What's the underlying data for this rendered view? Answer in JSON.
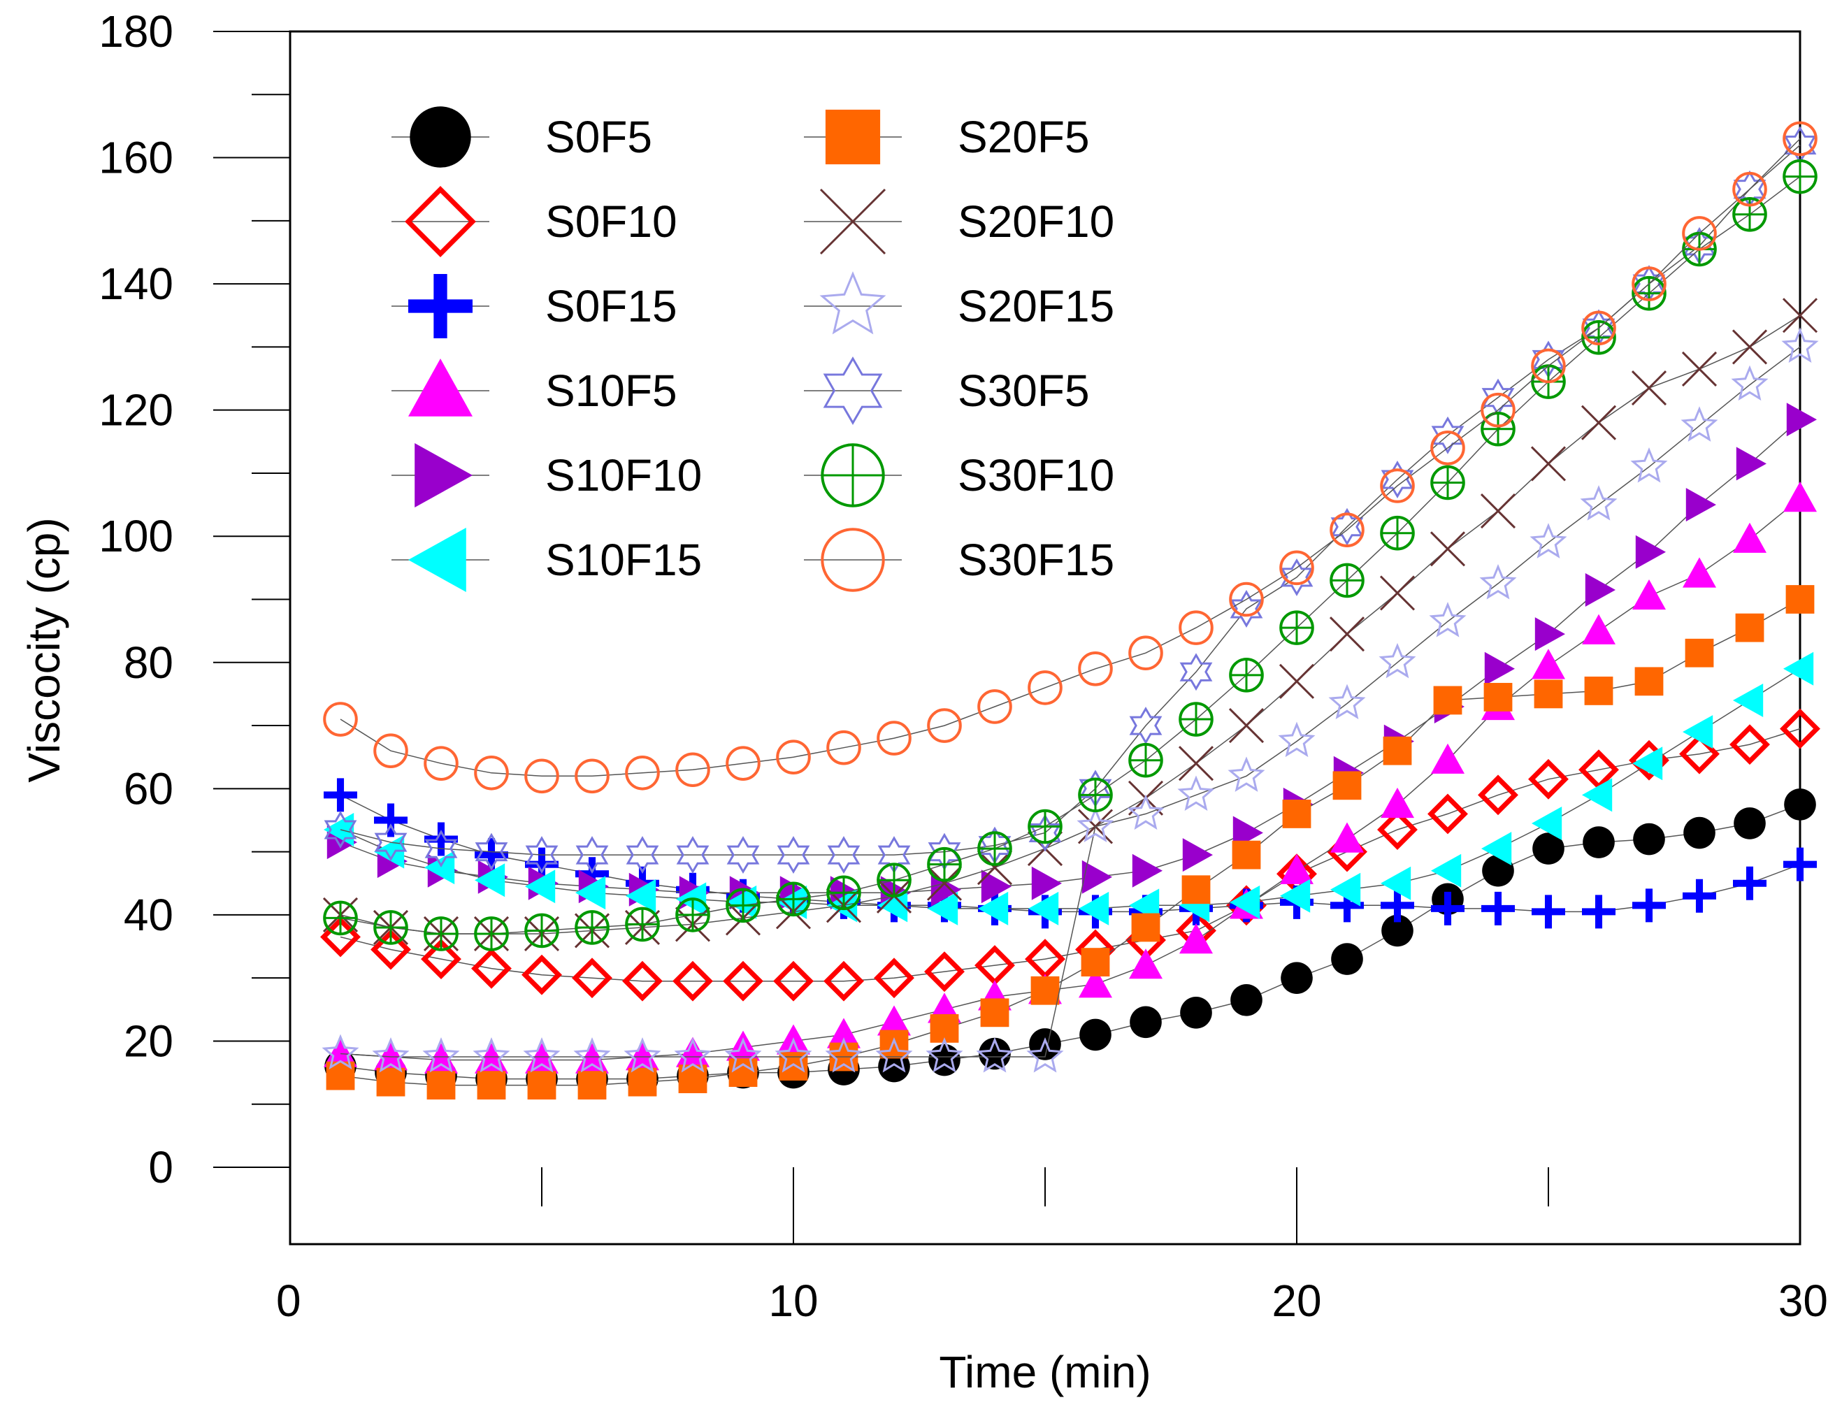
{
  "chart_data": {
    "type": "line",
    "xlabel": "Time (min)",
    "ylabel": "Viscocity (cp)",
    "xlim": [
      0,
      30
    ],
    "ylim": [
      0,
      180
    ],
    "x_ticks": [
      0,
      10,
      20,
      30
    ],
    "y_ticks": [
      0,
      20,
      40,
      60,
      80,
      100,
      120,
      140,
      160,
      180
    ],
    "grid": false,
    "legend_placement": "top-left",
    "x": [
      1,
      2,
      3,
      4,
      5,
      6,
      7,
      8,
      9,
      10,
      11,
      12,
      13,
      14,
      15,
      16,
      17,
      18,
      19,
      20,
      21,
      22,
      23,
      24,
      25,
      26,
      27,
      28,
      29,
      30
    ],
    "series": [
      {
        "name": "S0F5",
        "marker": "filled-circle",
        "color": "#000000",
        "values": [
          16,
          15,
          14.5,
          14,
          14,
          14,
          14,
          14.5,
          15,
          15,
          15.5,
          16,
          17,
          18,
          19.5,
          21,
          23,
          24.5,
          26.5,
          30,
          33,
          37.5,
          42.5,
          47,
          50.5,
          51.5,
          52,
          53,
          54.5,
          57.5
        ]
      },
      {
        "name": "S0F10",
        "marker": "open-diamond",
        "color": "#ff0000",
        "values": [
          36.5,
          34.5,
          33,
          31.5,
          30.5,
          30,
          29.5,
          29.5,
          29.5,
          29.5,
          29.5,
          30,
          31,
          32,
          33,
          34.5,
          36,
          37.5,
          41.5,
          46.5,
          50,
          53.5,
          56,
          59,
          61.5,
          63,
          64.5,
          65.5,
          67,
          69.5
        ]
      },
      {
        "name": "S0F15",
        "marker": "plus",
        "color": "#0000ff",
        "values": [
          59,
          55,
          52,
          49.5,
          48,
          46.5,
          45,
          44,
          43,
          42.5,
          42,
          41.5,
          41.5,
          41,
          40.5,
          40.5,
          40.5,
          41,
          41.5,
          42,
          41.5,
          41.5,
          41,
          41,
          40.5,
          40.5,
          41.5,
          43,
          45,
          48
        ]
      },
      {
        "name": "S10F5",
        "marker": "filled-triangle-up",
        "color": "#ff00ff",
        "values": [
          18,
          17.5,
          17,
          17,
          17,
          17,
          17.5,
          18,
          19,
          20,
          21,
          23,
          25,
          27,
          28,
          29,
          32,
          36,
          41.5,
          47,
          52,
          57.5,
          64.5,
          73,
          79.5,
          85,
          90.5,
          94,
          99.5,
          106
        ]
      },
      {
        "name": "S10F10",
        "marker": "filled-triangle-right",
        "color": "#9900cc",
        "values": [
          51.5,
          48.5,
          47,
          46,
          45,
          44.5,
          44,
          43.5,
          43.5,
          43.5,
          43.5,
          43.5,
          44,
          44.5,
          45,
          46,
          47,
          49.5,
          53,
          57.5,
          62.5,
          67.5,
          73,
          79,
          84.5,
          91.5,
          97.5,
          105,
          111.5,
          118.5
        ]
      },
      {
        "name": "S10F15",
        "marker": "filled-triangle-left",
        "color": "#00ffff",
        "values": [
          53.5,
          50,
          47.5,
          45.5,
          44.5,
          43.5,
          43,
          42.5,
          42,
          42,
          41.5,
          41.5,
          41,
          41,
          41,
          41,
          41.5,
          41.5,
          42,
          43,
          44,
          45,
          47,
          50.5,
          54.5,
          59,
          64,
          69,
          74,
          79
        ]
      },
      {
        "name": "S20F5",
        "marker": "filled-square",
        "color": "#ff6600",
        "values": [
          14.5,
          13.5,
          13,
          13,
          13,
          13,
          13.5,
          14,
          15,
          16,
          17.5,
          19.5,
          22,
          24.5,
          28,
          32.5,
          38,
          44,
          49.5,
          56,
          60.5,
          66,
          74,
          74.5,
          75,
          75.5,
          77,
          81.5,
          85.5,
          90
        ]
      },
      {
        "name": "S20F10",
        "marker": "x-cross",
        "color": "#663333",
        "values": [
          40,
          38,
          37,
          37,
          37,
          37.5,
          38,
          38.5,
          39.5,
          40.5,
          41.5,
          43,
          45,
          47.5,
          50.5,
          54,
          58.5,
          64,
          70,
          77,
          84.5,
          91,
          98,
          104,
          111.5,
          118,
          123.5,
          126.5,
          130,
          135
        ]
      },
      {
        "name": "S20F15",
        "marker": "open-star",
        "color": "#aaaaee",
        "values": [
          18,
          17.5,
          17.5,
          17.5,
          17.5,
          17.5,
          17.5,
          17.5,
          17.5,
          17.5,
          17.5,
          17.5,
          17.5,
          17.5,
          17.5,
          54,
          56,
          59,
          62,
          67.5,
          73.5,
          80,
          86.5,
          92.5,
          99,
          105,
          111,
          117.5,
          124,
          130
        ]
      },
      {
        "name": "S30F5",
        "marker": "open-hexagram",
        "color": "#7777dd",
        "values": [
          53.5,
          51.5,
          50.5,
          50,
          49.5,
          49.5,
          49.5,
          49.5,
          49.5,
          49.5,
          49.5,
          49.5,
          50,
          51,
          53,
          60,
          70,
          78.5,
          88.5,
          93.5,
          101.5,
          109,
          116,
          122,
          128,
          133,
          140,
          146,
          155,
          162
        ]
      },
      {
        "name": "S30F10",
        "marker": "open-circle-plus",
        "color": "#009900",
        "values": [
          39.5,
          38,
          37,
          37,
          37.5,
          38,
          38.5,
          40,
          41.5,
          42.5,
          43.5,
          45.5,
          48,
          50.5,
          54,
          59,
          64.5,
          71,
          78,
          85.5,
          93,
          100.5,
          108.5,
          117,
          124.5,
          131.5,
          138.5,
          145.5,
          151,
          157
        ]
      },
      {
        "name": "S30F15",
        "marker": "open-circle",
        "color": "#ff6633",
        "values": [
          71,
          66,
          64,
          62.5,
          62,
          62,
          62.5,
          63,
          64,
          65,
          66.5,
          68,
          70,
          73,
          76,
          79,
          81.5,
          85.5,
          90,
          95,
          101,
          108,
          114,
          120,
          127,
          133,
          140,
          148,
          155,
          163
        ]
      }
    ]
  }
}
